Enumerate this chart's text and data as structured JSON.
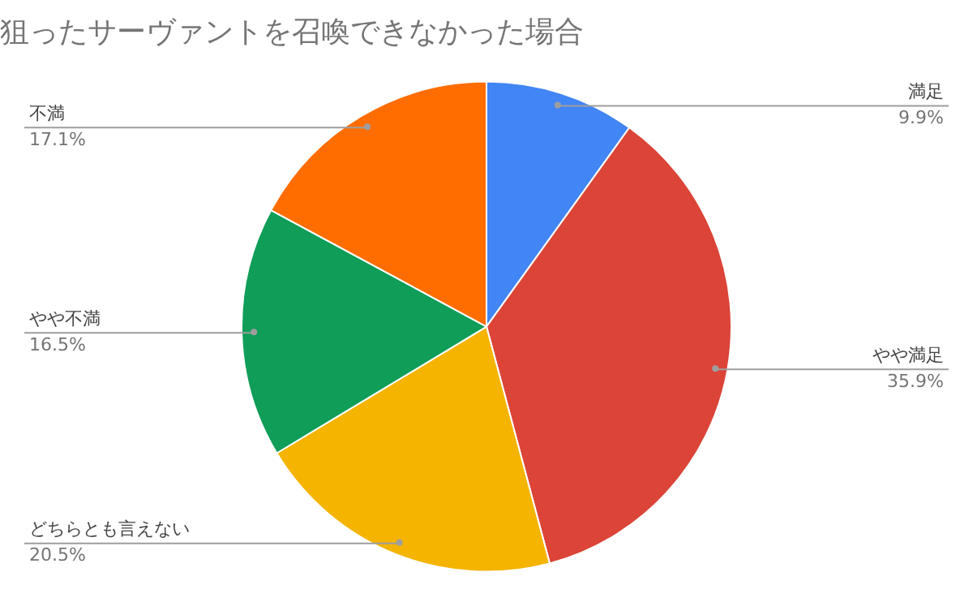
{
  "chart_data": {
    "type": "pie",
    "title": "狙ったサーヴァントを召喚できなかった場合",
    "categories": [
      "満足",
      "やや満足",
      "どちらとも言えない",
      "やや不満",
      "不満"
    ],
    "values": [
      9.9,
      35.9,
      20.5,
      16.5,
      17.1
    ],
    "colors": [
      "#4285f4",
      "#db4437",
      "#f4b400",
      "#0f9d58",
      "#ff6d00"
    ],
    "value_labels": [
      "9.9%",
      "35.9%",
      "20.5%",
      "16.5%",
      "17.1%"
    ],
    "legend": false
  }
}
